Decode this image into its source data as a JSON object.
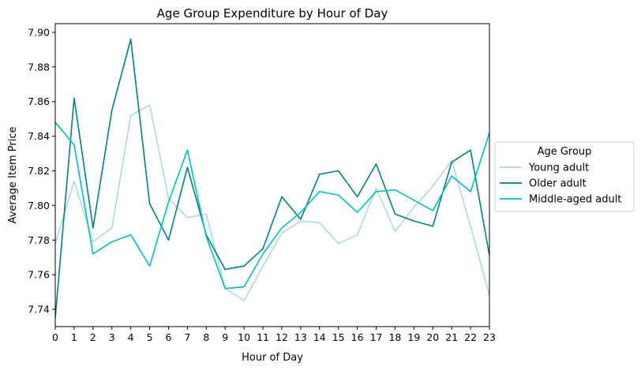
{
  "chart_data": {
    "type": "line",
    "title": "Age Group Expenditure by Hour of Day",
    "xlabel": "Hour of Day",
    "ylabel": "Average Item Price",
    "x": [
      0,
      1,
      2,
      3,
      4,
      5,
      6,
      7,
      8,
      9,
      10,
      11,
      12,
      13,
      14,
      15,
      16,
      17,
      18,
      19,
      20,
      21,
      22,
      23
    ],
    "xlim": [
      0,
      23
    ],
    "ylim": [
      7.73,
      7.905
    ],
    "yticks": [
      "7.74",
      "7.76",
      "7.78",
      "7.80",
      "7.82",
      "7.84",
      "7.86",
      "7.88",
      "7.90"
    ],
    "ytick_values": [
      7.74,
      7.76,
      7.78,
      7.8,
      7.82,
      7.84,
      7.86,
      7.88,
      7.9
    ],
    "grid": false,
    "legend": {
      "title": "Age Group",
      "placement": "center-right-outside"
    },
    "series": [
      {
        "name": "Young adult",
        "color": "#add8e6",
        "values": [
          7.778,
          7.814,
          7.779,
          7.787,
          7.852,
          7.858,
          7.804,
          7.793,
          7.795,
          7.752,
          7.745,
          7.765,
          7.784,
          7.791,
          7.79,
          7.778,
          7.783,
          7.81,
          7.785,
          7.799,
          7.811,
          7.826,
          7.788,
          7.748
        ]
      },
      {
        "name": "Older adult",
        "color": "#008080",
        "values": [
          7.735,
          7.862,
          7.787,
          7.855,
          7.896,
          7.801,
          7.78,
          7.822,
          7.783,
          7.763,
          7.765,
          7.775,
          7.805,
          7.792,
          7.818,
          7.82,
          7.805,
          7.824,
          7.795,
          7.791,
          7.788,
          7.825,
          7.832,
          7.771
        ]
      },
      {
        "name": "Middle-aged adult",
        "color": "#00bfbf",
        "values": [
          7.848,
          7.835,
          7.772,
          7.779,
          7.783,
          7.765,
          7.802,
          7.832,
          7.782,
          7.752,
          7.753,
          7.772,
          7.787,
          7.796,
          7.808,
          7.806,
          7.796,
          7.808,
          7.809,
          7.803,
          7.797,
          7.817,
          7.808,
          7.842
        ]
      }
    ]
  }
}
